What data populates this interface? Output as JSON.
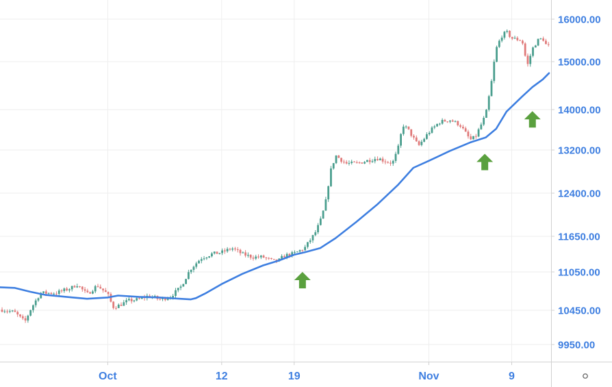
{
  "chart_data": {
    "type": "candlestick",
    "title": "",
    "xlabel": "",
    "ylabel": "",
    "ylim": [
      9700,
      16200
    ],
    "grid": true,
    "y_ticks": [
      {
        "value": 16000,
        "label": "16000.00"
      },
      {
        "value": 15000,
        "label": "15000.00"
      },
      {
        "value": 14000,
        "label": "14000.00"
      },
      {
        "value": 13200,
        "label": "13200.00"
      },
      {
        "value": 12400,
        "label": "12400.00"
      },
      {
        "value": 11650,
        "label": "11650.00"
      },
      {
        "value": 11050,
        "label": "11050.00"
      },
      {
        "value": 10450,
        "label": "10450.00"
      },
      {
        "value": 9950,
        "label": "9950.00"
      }
    ],
    "x_ticks": [
      {
        "day": 0,
        "label": "Oct"
      },
      {
        "day": 11,
        "label": "12"
      },
      {
        "day": 18,
        "label": "19"
      },
      {
        "day": 31,
        "label": "Nov"
      },
      {
        "day": 39,
        "label": "9"
      }
    ],
    "x_range": [
      -10.4,
      42.8
    ],
    "candle_interval_days": 0.25,
    "price_anchors": [
      [
        -10.2,
        10460
      ],
      [
        -9,
        10420
      ],
      [
        -8,
        10280
      ],
      [
        -7.4,
        10480
      ],
      [
        -6.5,
        10720
      ],
      [
        -5,
        10720
      ],
      [
        -3.5,
        10800
      ],
      [
        -3,
        10860
      ],
      [
        -2,
        10700
      ],
      [
        -1,
        10840
      ],
      [
        0,
        10700
      ],
      [
        0.5,
        10500
      ],
      [
        1,
        10520
      ],
      [
        2,
        10600
      ],
      [
        3,
        10620
      ],
      [
        4,
        10680
      ],
      [
        5,
        10620
      ],
      [
        6,
        10660
      ],
      [
        7,
        10800
      ],
      [
        7.5,
        10950
      ],
      [
        8,
        11100
      ],
      [
        9,
        11280
      ],
      [
        10,
        11350
      ],
      [
        11,
        11380
      ],
      [
        12,
        11450
      ],
      [
        13,
        11350
      ],
      [
        14,
        11300
      ],
      [
        15,
        11300
      ],
      [
        16,
        11230
      ],
      [
        16.5,
        11240
      ],
      [
        17,
        11320
      ],
      [
        18,
        11360
      ],
      [
        19,
        11450
      ],
      [
        20,
        11700
      ],
      [
        20.5,
        11900
      ],
      [
        21,
        12200
      ],
      [
        21.5,
        12800
      ],
      [
        22,
        13100
      ],
      [
        23,
        12950
      ],
      [
        24,
        12950
      ],
      [
        25,
        13000
      ],
      [
        26,
        13050
      ],
      [
        27,
        12980
      ],
      [
        27.5,
        12960
      ],
      [
        28,
        13200
      ],
      [
        28.5,
        13700
      ],
      [
        29,
        13600
      ],
      [
        30,
        13280
      ],
      [
        31,
        13550
      ],
      [
        32,
        13750
      ],
      [
        33,
        13800
      ],
      [
        34,
        13700
      ],
      [
        35,
        13400
      ],
      [
        35.5,
        13460
      ],
      [
        36,
        13680
      ],
      [
        36.5,
        13900
      ],
      [
        37,
        14500
      ],
      [
        37.5,
        15300
      ],
      [
        38,
        15600
      ],
      [
        38.5,
        15700
      ],
      [
        39,
        15550
      ],
      [
        40,
        15500
      ],
      [
        40.5,
        14900
      ],
      [
        41,
        15300
      ],
      [
        41.5,
        15500
      ],
      [
        42,
        15550
      ],
      [
        42.3,
        15400
      ],
      [
        42.7,
        15350
      ]
    ],
    "series": [
      {
        "name": "Moving Average",
        "type": "line",
        "color": "#3d7ee0",
        "points": [
          [
            -10.4,
            10810
          ],
          [
            -9,
            10800
          ],
          [
            -7.5,
            10740
          ],
          [
            -6,
            10690
          ],
          [
            -4,
            10660
          ],
          [
            -2,
            10630
          ],
          [
            0,
            10650
          ],
          [
            1,
            10680
          ],
          [
            3,
            10660
          ],
          [
            5,
            10650
          ],
          [
            7,
            10630
          ],
          [
            8,
            10620
          ],
          [
            8.5,
            10640
          ],
          [
            9.5,
            10720
          ],
          [
            11,
            10860
          ],
          [
            13,
            11020
          ],
          [
            15,
            11160
          ],
          [
            16.5,
            11240
          ],
          [
            18,
            11340
          ],
          [
            19,
            11380
          ],
          [
            20.5,
            11450
          ],
          [
            22,
            11620
          ],
          [
            24,
            11900
          ],
          [
            26,
            12200
          ],
          [
            28,
            12550
          ],
          [
            29.5,
            12870
          ],
          [
            31,
            13000
          ],
          [
            33,
            13180
          ],
          [
            35,
            13350
          ],
          [
            36.5,
            13450
          ],
          [
            37.5,
            13620
          ],
          [
            38.5,
            13960
          ],
          [
            40,
            14270
          ],
          [
            41,
            14470
          ],
          [
            42,
            14630
          ],
          [
            42.6,
            14760
          ]
        ]
      }
    ],
    "annotations": [
      {
        "type": "arrow-up",
        "day": 18.8,
        "value": 11050,
        "color": "#5aa03e"
      },
      {
        "type": "arrow-up",
        "day": 36.4,
        "value": 13130,
        "color": "#5aa03e"
      },
      {
        "type": "arrow-up",
        "day": 41,
        "value": 13970,
        "color": "#5aa03e"
      }
    ],
    "colors": {
      "up": "#4a9e8e",
      "down": "#e07a7a",
      "axis_text": "#3d7ee0",
      "grid": "#eeeeee",
      "axis_line": "#d0d0d0"
    }
  },
  "axis": {
    "settings_icon": "gear-icon"
  }
}
